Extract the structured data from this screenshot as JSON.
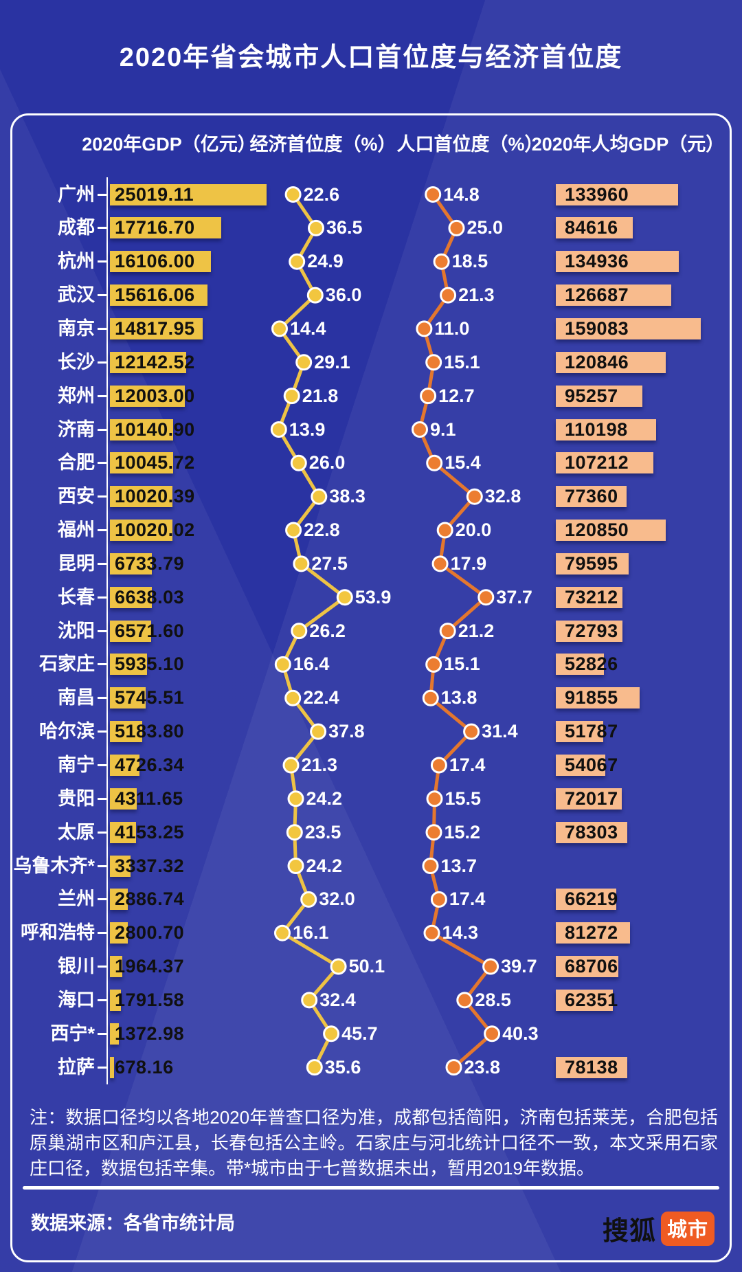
{
  "page": {
    "title": "2020年省会城市人口首位度与经济首位度",
    "note": "注：数据口径均以各地2020年普查口径为准，成都包括简阳，济南包括莱芜，合肥包括原巢湖市区和庐江县，长春包括公主岭。石家庄与河北统计口径不一致，本文采用石家庄口径，数据包括辛集。带*城市由于七普数据未出，暂用2019年数据。",
    "source_label": "数据来源：各省市统计局",
    "logo": {
      "text_black": "搜狐",
      "text_badge": "城市",
      "badge_color": "#ef5b22"
    }
  },
  "colors": {
    "background": "#2a33a2",
    "panel_border": "#ffffff",
    "axis": "#ffffff",
    "gdp_bar": "#eec345",
    "econ_line": "#eec345",
    "econ_dot": "#f2c63f",
    "pop_line": "#e4772e",
    "pop_dot": "#ec7d31",
    "pc_bar": "#f8bb8d",
    "bar_text": "#101010",
    "label_text": "#ffffff"
  },
  "chart_data": {
    "type": "bar+line",
    "columns": [
      "2020年GDP（亿元）",
      "经济首位度（%）",
      "人口首位度（%）",
      "2020年人均GDP（元）"
    ],
    "cities": [
      "广州",
      "成都",
      "杭州",
      "武汉",
      "南京",
      "长沙",
      "郑州",
      "济南",
      "合肥",
      "西安",
      "福州",
      "昆明",
      "长春",
      "沈阳",
      "石家庄",
      "南昌",
      "哈尔滨",
      "南宁",
      "贵阳",
      "太原",
      "乌鲁木齐*",
      "兰州",
      "呼和浩特",
      "银川",
      "海口",
      "西宁*",
      "拉萨"
    ],
    "series": [
      {
        "name": "2020年GDP（亿元）",
        "type": "bar",
        "color": "#eec345",
        "values": [
          "25019.11",
          "17716.70",
          "16106.00",
          "15616.06",
          "14817.95",
          "12142.52",
          "12003.00",
          "10140.90",
          "10045.72",
          "10020.39",
          "10020.02",
          "6733.79",
          "6638.03",
          "6571.60",
          "5935.10",
          "5745.51",
          "5183.80",
          "4726.34",
          "4311.65",
          "4153.25",
          "3337.32",
          "2886.74",
          "2800.70",
          "1964.37",
          "1791.58",
          "1372.98",
          "678.16"
        ]
      },
      {
        "name": "经济首位度（%）",
        "type": "line",
        "color": "#eec345",
        "values": [
          "22.6",
          "36.5",
          "24.9",
          "36.0",
          "14.4",
          "29.1",
          "21.8",
          "13.9",
          "26.0",
          "38.3",
          "22.8",
          "27.5",
          "53.9",
          "26.2",
          "16.4",
          "22.4",
          "37.8",
          "21.3",
          "24.2",
          "23.5",
          "24.2",
          "32.0",
          "16.1",
          "50.1",
          "32.4",
          "45.7",
          "35.6"
        ]
      },
      {
        "name": "人口首位度（%）",
        "type": "line",
        "color": "#e4772e",
        "values": [
          "14.8",
          "25.0",
          "18.5",
          "21.3",
          "11.0",
          "15.1",
          "12.7",
          "9.1",
          "15.4",
          "32.8",
          "20.0",
          "17.9",
          "37.7",
          "21.2",
          "15.1",
          "13.8",
          "31.4",
          "17.4",
          "15.5",
          "15.2",
          "13.7",
          "17.4",
          "14.3",
          "39.7",
          "28.5",
          "40.3",
          "23.8"
        ]
      },
      {
        "name": "2020年人均GDP（元）",
        "type": "bar",
        "color": "#f8bb8d",
        "values": [
          "133960",
          "84616",
          "134936",
          "126687",
          "159083",
          "120846",
          "95257",
          "110198",
          "107212",
          "77360",
          "120850",
          "79595",
          "73212",
          "72793",
          "52826",
          "91855",
          "51787",
          "54067",
          "72017",
          "78303",
          null,
          "66219",
          "81272",
          "68706",
          "62351",
          null,
          "78138"
        ]
      }
    ]
  }
}
